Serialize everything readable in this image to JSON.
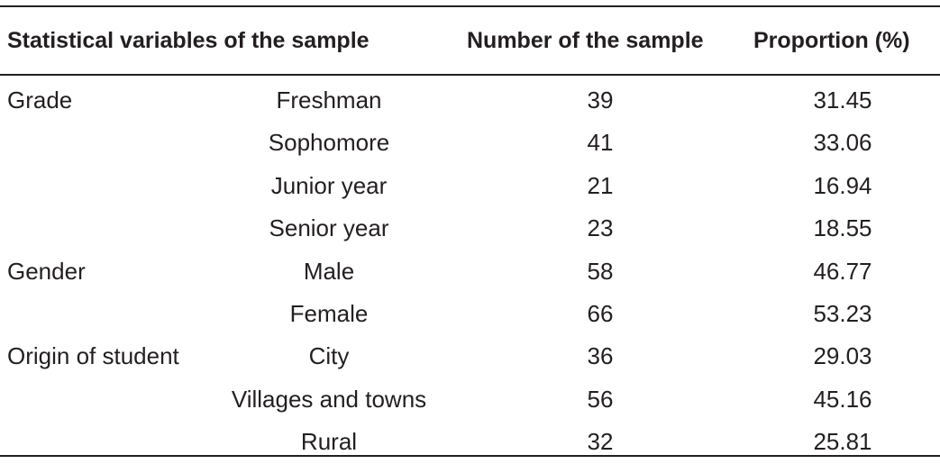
{
  "table": {
    "headers": {
      "variable": "Statistical variables of the sample",
      "number": "Number of the sample",
      "proportion": "Proportion (%)"
    },
    "rows": [
      {
        "group": "Grade",
        "sub": "Freshman",
        "number": "39",
        "proportion": "31.45"
      },
      {
        "group": "",
        "sub": "Sophomore",
        "number": "41",
        "proportion": "33.06"
      },
      {
        "group": "",
        "sub": "Junior year",
        "number": "21",
        "proportion": "16.94"
      },
      {
        "group": "",
        "sub": "Senior year",
        "number": "23",
        "proportion": "18.55"
      },
      {
        "group": "Gender",
        "sub": "Male",
        "number": "58",
        "proportion": "46.77"
      },
      {
        "group": "",
        "sub": "Female",
        "number": "66",
        "proportion": "53.23"
      },
      {
        "group": "Origin of student",
        "sub": "City",
        "number": "36",
        "proportion": "29.03"
      },
      {
        "group": "",
        "sub": "Villages and towns",
        "number": "56",
        "proportion": "45.16"
      },
      {
        "group": "",
        "sub": "Rural",
        "number": "32",
        "proportion": "25.81"
      }
    ]
  }
}
